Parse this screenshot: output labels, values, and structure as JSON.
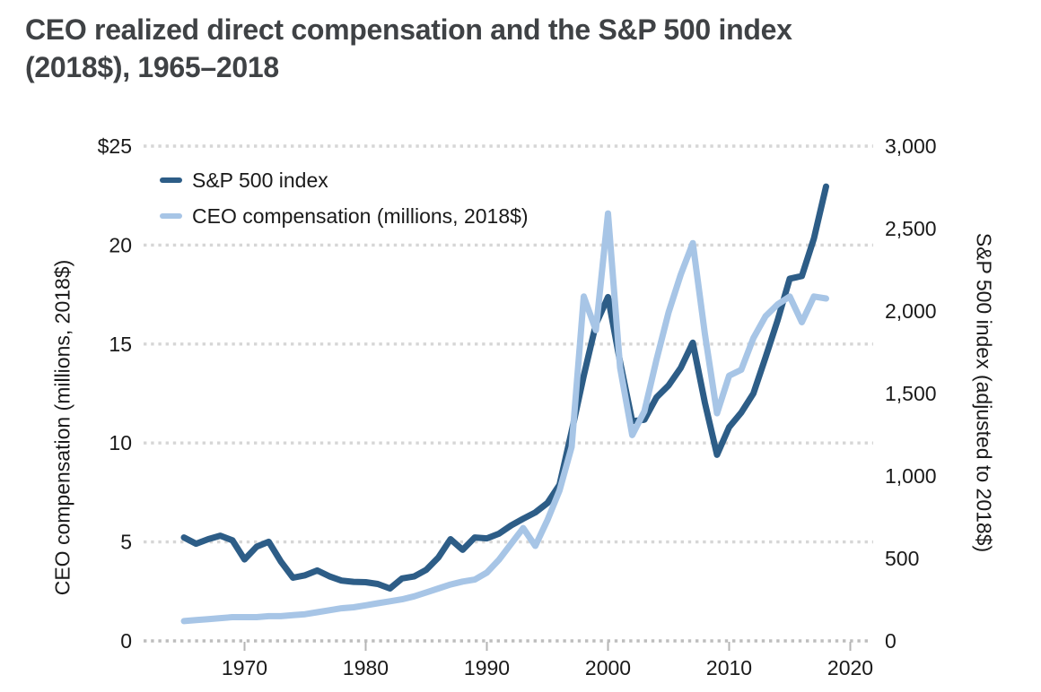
{
  "header": {
    "title_line1": "CEO realized direct compensation and the S&P 500 index",
    "title_line2": "(2018$), 1965–2018"
  },
  "colors": {
    "background": "#ffffff",
    "title_text": "#3f4245",
    "tick_text": "#1a1a1a",
    "grid": "#d6d6d6",
    "axis_line": "#bdbdbd",
    "tick_mark": "#b5b5b5",
    "sp500_line": "#2d5d87",
    "ceo_line": "#a7c5e6"
  },
  "chart_data": {
    "type": "line",
    "title": "CEO realized direct compensation and the S&P 500 index (2018$), 1965–2018",
    "grid": true,
    "legend_position": "top-left-inside",
    "x": [
      1965,
      1966,
      1967,
      1968,
      1969,
      1970,
      1971,
      1972,
      1973,
      1974,
      1975,
      1976,
      1977,
      1978,
      1979,
      1980,
      1981,
      1982,
      1983,
      1984,
      1985,
      1986,
      1987,
      1988,
      1989,
      1990,
      1991,
      1992,
      1993,
      1994,
      1995,
      1996,
      1997,
      1998,
      1999,
      2000,
      2001,
      2002,
      2003,
      2004,
      2005,
      2006,
      2007,
      2008,
      2009,
      2010,
      2011,
      2012,
      2013,
      2014,
      2015,
      2016,
      2017,
      2018
    ],
    "x_axis": {
      "tick_labels": [
        "1970",
        "1980",
        "1990",
        "2000",
        "2010",
        "2020"
      ],
      "tick_values": [
        1970,
        1980,
        1990,
        2000,
        2010,
        2020
      ],
      "range": [
        1965,
        2020
      ]
    },
    "left_axis": {
      "label": "CEO compensation (millions, 2018$)",
      "tick_labels": [
        "$25",
        "20",
        "15",
        "10",
        "5",
        "0"
      ],
      "tick_values": [
        25,
        20,
        15,
        10,
        5,
        0
      ],
      "range": [
        0,
        25
      ]
    },
    "right_axis": {
      "label": "S&P 500 index (adjusted to 2018$)",
      "tick_labels": [
        "3,000",
        "2,500",
        "2,000",
        "1,500",
        "1,000",
        "500",
        "0"
      ],
      "tick_values": [
        3000,
        2500,
        2000,
        1500,
        1000,
        500,
        0
      ],
      "range": [
        0,
        3000
      ]
    },
    "series": [
      {
        "name": "S&P 500 index",
        "axis": "right",
        "color": "#2d5d87",
        "values": [
          627,
          589,
          617,
          638,
          610,
          494,
          571,
          601,
          481,
          383,
          398,
          427,
          392,
          366,
          358,
          356,
          345,
          318,
          379,
          391,
          431,
          506,
          617,
          552,
          627,
          622,
          650,
          700,
          741,
          779,
          836,
          947,
          1270,
          1608,
          1920,
          2085,
          1690,
          1332,
          1341,
          1476,
          1549,
          1655,
          1808,
          1443,
          1128,
          1296,
          1384,
          1500,
          1718,
          1944,
          2196,
          2212,
          2441,
          2755
        ]
      },
      {
        "name": "CEO compensation (millions, 2018$)",
        "axis": "left",
        "color": "#a7c5e6",
        "values": [
          1.0,
          1.05,
          1.1,
          1.15,
          1.2,
          1.2,
          1.2,
          1.25,
          1.25,
          1.3,
          1.35,
          1.45,
          1.55,
          1.65,
          1.7,
          1.8,
          1.9,
          2.0,
          2.1,
          2.25,
          2.45,
          2.65,
          2.85,
          3.0,
          3.1,
          3.45,
          4.1,
          4.9,
          5.7,
          4.8,
          6.1,
          7.6,
          9.8,
          17.4,
          15.7,
          21.6,
          13.8,
          10.4,
          11.6,
          14.2,
          16.6,
          18.5,
          20.1,
          15.5,
          11.5,
          13.4,
          13.7,
          15.3,
          16.4,
          17.0,
          17.4,
          16.1,
          17.4,
          17.3
        ]
      }
    ]
  }
}
